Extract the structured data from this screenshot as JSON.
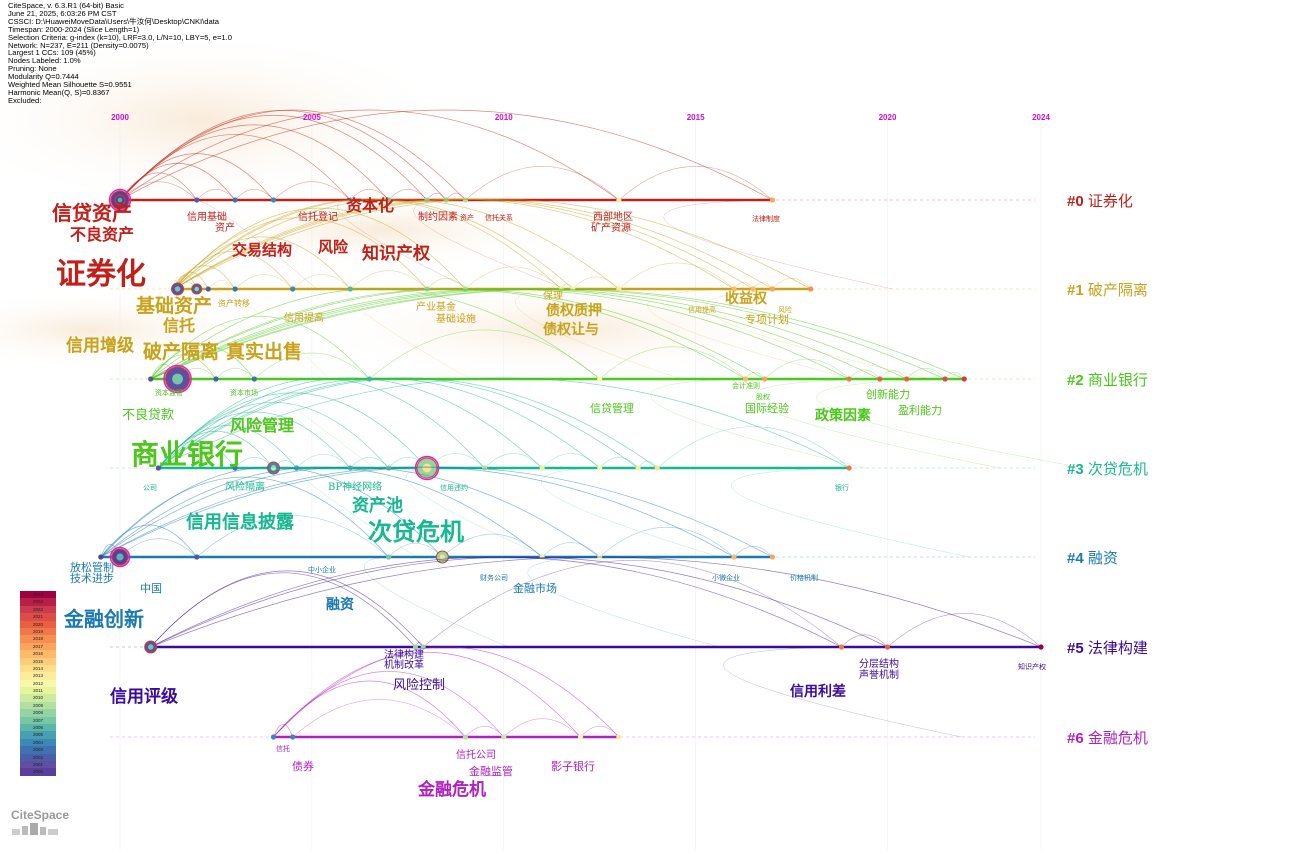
{
  "header": [
    "CiteSpace, v. 6.3.R1 (64-bit) Basic",
    "June 21, 2025, 6:03:26 PM CST",
    "CSSCI: D:\\HuaweiMoveData\\Users\\牛汝何\\Desktop\\CNKI\\data",
    "Timespan: 2000-2024 (Slice Length=1)",
    "Selection Criteria: g-index (k=10), LRF=3.0, L/N=10, LBY=5, e=1.0",
    "Network: N=237, E=211 (Density=0.0075)",
    "Largest 1 CCs: 109 (45%)",
    "Nodes Labeled: 1.0%",
    "Pruning: None",
    "Modularity Q=0.7444",
    "Weighted Mean Silhouette S=0.9551",
    "Harmonic Mean(Q, S)=0.8367",
    "Excluded:"
  ],
  "timeline": {
    "range": [
      2000,
      2024
    ],
    "ticks": [
      "2000",
      "2005",
      "2010",
      "2015",
      "2020",
      "2024"
    ]
  },
  "clusters": [
    {
      "id": "#0",
      "label": "证券化",
      "color": "#c0201a",
      "nodes": [
        2000,
        2000,
        2000,
        2002,
        2003,
        2004,
        2006,
        2007,
        2008,
        2008.5,
        2009,
        2013,
        2017
      ],
      "terms": [
        "信贷资产",
        "不良资产",
        "信用基础",
        "资产",
        "信托登记",
        "资本化",
        "制约因素",
        "资产",
        "信托关系",
        "西部地区",
        "矿产资源",
        "法律制度",
        "交易结构",
        "风险",
        "知识产权",
        "证券化"
      ]
    },
    {
      "id": "#1",
      "label": "破产隔离",
      "color": "#c9a21a",
      "nodes": [
        2001.4,
        2001.5,
        2002,
        2002.3,
        2003,
        2004.5,
        2006,
        2008,
        2009,
        2011.5,
        2011.8,
        2013,
        2016,
        2016.5,
        2017,
        2018
      ],
      "terms": [
        "基础资产",
        "信托",
        "资产转移",
        "信用提高",
        "信用增级",
        "破产隔离",
        "真实出售",
        "产业基金",
        "基础设施",
        "保理",
        "债权质押",
        "债权让与",
        "收益权",
        "专项计划",
        "信用提高",
        "风险"
      ]
    },
    {
      "id": "#2",
      "label": "商业银行",
      "color": "#4cc81a",
      "nodes": [
        2000.8,
        2001.5,
        2002.5,
        2003.5,
        2006.5,
        2012.5,
        2016.3,
        2016.8,
        2019,
        2019.8,
        2020.5,
        2021.5,
        2022
      ],
      "terms": [
        "资本监管",
        "资本市场",
        "不良贷款",
        "风险管理",
        "商业银行",
        "信贷管理",
        "会计准则",
        "股权",
        "国际经验",
        "政策因素",
        "创新能力",
        "盈利能力"
      ]
    },
    {
      "id": "#3",
      "label": "次贷危机",
      "color": "#16b890",
      "nodes": [
        2001,
        2003,
        2004,
        2004.6,
        2006,
        2007,
        2008,
        2009.5,
        2011,
        2012.5,
        2013.5,
        2014,
        2019
      ],
      "terms": [
        "公司",
        "风险隔离",
        "BP神经网络",
        "信用违约",
        "资产池",
        "次贷危机",
        "信用信息披露",
        "银行"
      ]
    },
    {
      "id": "#4",
      "label": "融资",
      "color": "#1a7ab0",
      "nodes": [
        1999.5,
        2000,
        2002,
        2007,
        2008.4,
        2011,
        2012.5,
        2016,
        2017
      ],
      "terms": [
        "放松管制",
        "技术进步",
        "中国",
        "中小企业",
        "财务公司",
        "金融市场",
        "小微企业",
        "价格机制",
        "融资",
        "金融创新"
      ]
    },
    {
      "id": "#5",
      "label": "法律构建",
      "color": "#3a0a9a",
      "nodes": [
        2000.8,
        2007.7,
        2007.9,
        2018.8,
        2020,
        2024
      ],
      "terms": [
        "法律构建",
        "机制改革",
        "风险控制",
        "分层结构",
        "声誉机制",
        "信用利差",
        "信用评级",
        "知识产权"
      ]
    },
    {
      "id": "#6",
      "label": "金融危机",
      "color": "#b020c0",
      "nodes": [
        2004,
        2004.5,
        2009,
        2010,
        2012,
        2013
      ],
      "terms": [
        "信托",
        "债券",
        "信托公司",
        "金融监管",
        "影子银行",
        "金融危机"
      ]
    }
  ],
  "legend_years": [
    "2024",
    "2023",
    "2022",
    "2021",
    "2020",
    "2019",
    "2018",
    "2017",
    "2016",
    "2015",
    "2014",
    "2013",
    "2012",
    "2011",
    "2010",
    "2009",
    "2008",
    "2007",
    "2006",
    "2005",
    "2004",
    "2003",
    "2002",
    "2001",
    "2000"
  ],
  "logo": "CiteSpace"
}
